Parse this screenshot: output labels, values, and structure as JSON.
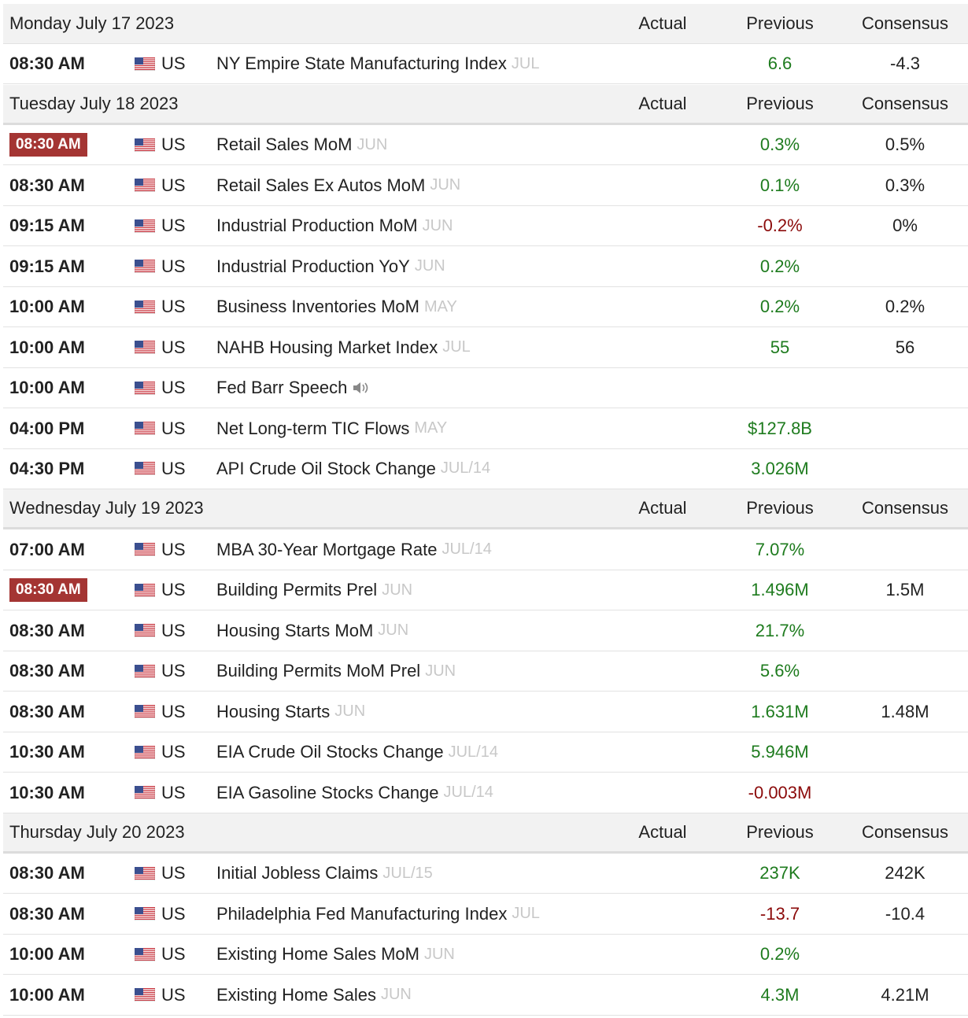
{
  "sections": [
    {
      "date": "Monday July 17 2023",
      "columns": [
        "Actual",
        "Previous",
        "Consensus"
      ],
      "rows": [
        {
          "time": "08:30 AM",
          "country": "US",
          "event": "NY Empire State Manufacturing Index",
          "period": "JUL",
          "previous": "6.6",
          "previous_color": "#1e7b1e",
          "consensus": "-4.3"
        }
      ]
    },
    {
      "date": "Tuesday July 18 2023",
      "columns": [
        "Actual",
        "Previous",
        "Consensus"
      ],
      "rows": [
        {
          "time": "08:30 AM",
          "highlight": true,
          "country": "US",
          "event": "Retail Sales MoM",
          "period": "JUN",
          "previous": "0.3%",
          "previous_color": "#1e7b1e",
          "consensus": "0.5%"
        },
        {
          "time": "08:30 AM",
          "country": "US",
          "event": "Retail Sales Ex Autos MoM",
          "period": "JUN",
          "previous": "0.1%",
          "previous_color": "#1e7b1e",
          "consensus": "0.3%"
        },
        {
          "time": "09:15 AM",
          "country": "US",
          "event": "Industrial Production MoM",
          "period": "JUN",
          "previous": "-0.2%",
          "previous_color": "#8b0a0a",
          "consensus": "0%"
        },
        {
          "time": "09:15 AM",
          "country": "US",
          "event": "Industrial Production YoY",
          "period": "JUN",
          "previous": "0.2%",
          "previous_color": "#1e7b1e"
        },
        {
          "time": "10:00 AM",
          "country": "US",
          "event": "Business Inventories MoM",
          "period": "MAY",
          "previous": "0.2%",
          "previous_color": "#1e7b1e",
          "consensus": "0.2%"
        },
        {
          "time": "10:00 AM",
          "country": "US",
          "event": "NAHB Housing Market Index",
          "period": "JUL",
          "previous": "55",
          "previous_color": "#1e7b1e",
          "consensus": "56"
        },
        {
          "time": "10:00 AM",
          "country": "US",
          "event": "Fed Barr Speech",
          "audio": true
        },
        {
          "time": "04:00 PM",
          "country": "US",
          "event": "Net Long-term TIC Flows",
          "period": "MAY",
          "previous": "$127.8B",
          "previous_color": "#1e7b1e"
        },
        {
          "time": "04:30 PM",
          "country": "US",
          "event": "API Crude Oil Stock Change",
          "period": "JUL/14",
          "previous": "3.026M",
          "previous_color": "#1e7b1e"
        }
      ]
    },
    {
      "date": "Wednesday July 19 2023",
      "columns": [
        "Actual",
        "Previous",
        "Consensus"
      ],
      "rows": [
        {
          "time": "07:00 AM",
          "country": "US",
          "event": "MBA 30-Year Mortgage Rate",
          "period": "JUL/14",
          "previous": "7.07%",
          "previous_color": "#1e7b1e"
        },
        {
          "time": "08:30 AM",
          "highlight": true,
          "country": "US",
          "event": "Building Permits Prel",
          "period": "JUN",
          "previous": "1.496M",
          "previous_color": "#1e7b1e",
          "consensus": "1.5M"
        },
        {
          "time": "08:30 AM",
          "country": "US",
          "event": "Housing Starts MoM",
          "period": "JUN",
          "previous": "21.7%",
          "previous_color": "#1e7b1e"
        },
        {
          "time": "08:30 AM",
          "country": "US",
          "event": "Building Permits MoM Prel",
          "period": "JUN",
          "previous": "5.6%",
          "previous_color": "#1e7b1e"
        },
        {
          "time": "08:30 AM",
          "country": "US",
          "event": "Housing Starts",
          "period": "JUN",
          "previous": "1.631M",
          "previous_color": "#1e7b1e",
          "consensus": "1.48M"
        },
        {
          "time": "10:30 AM",
          "country": "US",
          "event": "EIA Crude Oil Stocks Change",
          "period": "JUL/14",
          "previous": "5.946M",
          "previous_color": "#1e7b1e"
        },
        {
          "time": "10:30 AM",
          "country": "US",
          "event": "EIA Gasoline Stocks Change",
          "period": "JUL/14",
          "previous": "-0.003M",
          "previous_color": "#8b0a0a"
        }
      ]
    },
    {
      "date": "Thursday July 20 2023",
      "columns": [
        "Actual",
        "Previous",
        "Consensus"
      ],
      "rows": [
        {
          "time": "08:30 AM",
          "country": "US",
          "event": "Initial Jobless Claims",
          "period": "JUL/15",
          "previous": "237K",
          "previous_color": "#1e7b1e",
          "consensus": "242K"
        },
        {
          "time": "08:30 AM",
          "country": "US",
          "event": "Philadelphia Fed Manufacturing Index",
          "period": "JUL",
          "previous": "-13.7",
          "previous_color": "#8b0a0a",
          "consensus": "-10.4"
        },
        {
          "time": "10:00 AM",
          "country": "US",
          "event": "Existing Home Sales MoM",
          "period": "JUN",
          "previous": "0.2%",
          "previous_color": "#1e7b1e"
        },
        {
          "time": "10:00 AM",
          "country": "US",
          "event": "Existing Home Sales",
          "period": "JUN",
          "previous": "4.3M",
          "previous_color": "#1e7b1e",
          "consensus": "4.21M"
        }
      ]
    }
  ]
}
